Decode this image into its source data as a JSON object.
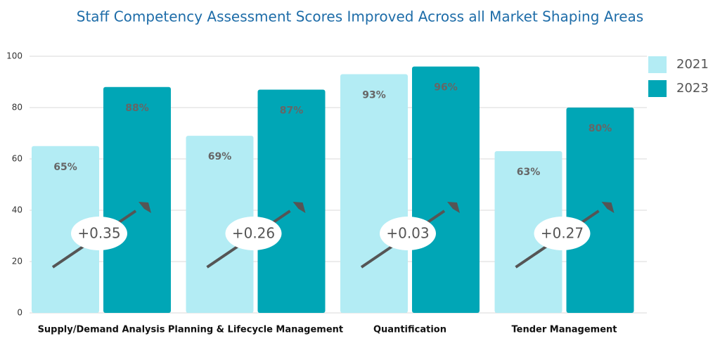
{
  "chart_data": {
    "type": "bar",
    "title": "Staff Competency Assessment Scores Improved Across all Market Shaping Areas",
    "categories": [
      "Supply/Demand Analysis",
      "Planning & Lifecycle Management",
      "Quantification",
      "Tender Management"
    ],
    "series": [
      {
        "name": "2021",
        "color": "#b3ecf4",
        "values": [
          65,
          69,
          93,
          63
        ],
        "value_labels": [
          "65%",
          "69%",
          "93%",
          "63%"
        ]
      },
      {
        "name": "2023",
        "color": "#00a6b6",
        "values": [
          88,
          87,
          96,
          80
        ],
        "value_labels": [
          "88%",
          "87%",
          "96%",
          "80%"
        ]
      }
    ],
    "annotations": [
      "+0.35",
      "+0.26",
      "+0.03",
      "+0.27"
    ],
    "ylim": [
      0,
      100
    ],
    "yticks": [
      0,
      20,
      40,
      60,
      80,
      100
    ],
    "grid": true,
    "legend": "right"
  }
}
